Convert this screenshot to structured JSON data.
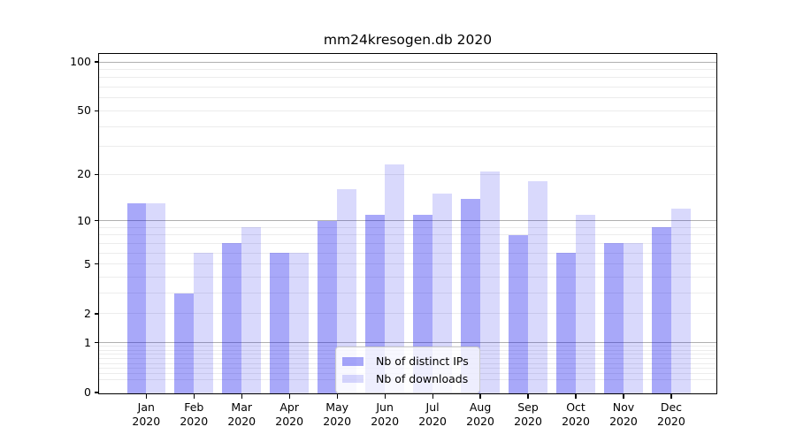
{
  "chart_data": {
    "type": "bar",
    "title": "mm24kresogen.db 2020",
    "categories": [
      "Jan",
      "Feb",
      "Mar",
      "Apr",
      "May",
      "Jun",
      "Jul",
      "Aug",
      "Sep",
      "Oct",
      "Nov",
      "Dec"
    ],
    "x_year_suffix": "2020",
    "series": [
      {
        "name": "Nb of distinct IPs",
        "color": "rgba(0,0,238,0.34)",
        "values": [
          13,
          3,
          7,
          6,
          10,
          11,
          11,
          14,
          8,
          6,
          7,
          9
        ]
      },
      {
        "name": "Nb of downloads",
        "color": "rgba(0,0,238,0.15)",
        "values": [
          13,
          6,
          9,
          6,
          16,
          23,
          15,
          21,
          18,
          11,
          7,
          12
        ]
      }
    ],
    "y_axis": {
      "scale": "log10(1+v)",
      "ylim": [
        0,
        113
      ],
      "tick_values": [
        100,
        50,
        20,
        10,
        5,
        2,
        1,
        0
      ],
      "tick_labels": [
        "100",
        "50",
        "20",
        "10",
        "5",
        "2",
        "1",
        "0"
      ],
      "major_grid_values": [
        1,
        10,
        100
      ],
      "minor_grid_values": [
        0.2,
        0.3,
        0.4,
        0.5,
        0.6,
        0.7,
        0.8,
        0.9,
        2,
        3,
        4,
        5,
        6,
        7,
        8,
        9,
        20,
        30,
        40,
        50,
        60,
        70,
        80,
        90
      ]
    },
    "legend": {
      "location": "lower center inside plot"
    },
    "grid": true
  },
  "colors": {
    "background": "#ffffff",
    "spine": "#000000",
    "grid_major": "#b0b0b0",
    "grid_minor": "#ececec",
    "legend_border": "#cccccc",
    "text": "#000000"
  }
}
